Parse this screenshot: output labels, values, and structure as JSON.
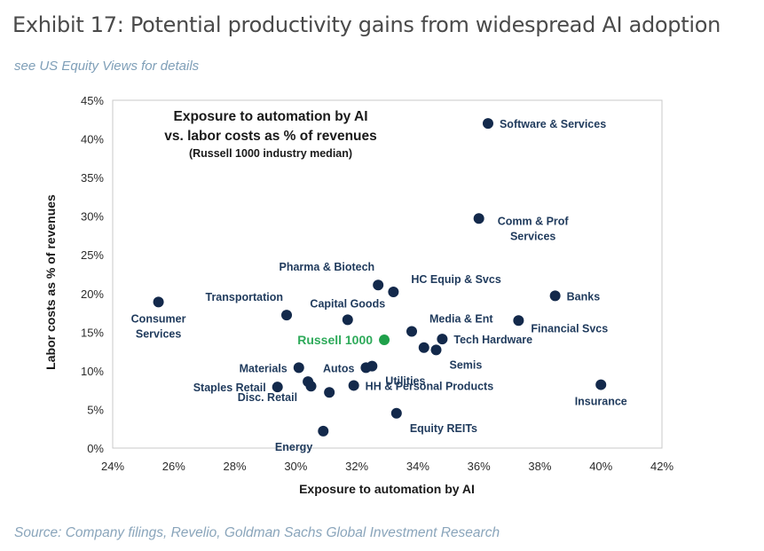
{
  "header": {
    "title": "Exhibit 17: Potential productivity gains from widespread AI adoption",
    "subtitle": "see US Equity Views for details"
  },
  "footer": {
    "source": "Source: Company filings, Revelio, Goldman Sachs Global Investment Research"
  },
  "colors": {
    "point": "#13294b",
    "highlight": "#1fa04a",
    "highlight_label": "#2eaa5a",
    "label": "#1f3a5c",
    "frame": "#c8c8c8"
  },
  "chart_data": {
    "type": "scatter",
    "title_lines": [
      "Exposure to automation by AI",
      "vs. labor costs as % of revenues"
    ],
    "subtitle": "(Russell 1000 industry median)",
    "xlabel": "Exposure to automation by AI",
    "ylabel": "Labor costs as % of revenues",
    "xlim": [
      24,
      42
    ],
    "ylim": [
      0,
      45
    ],
    "xticks": [
      24,
      26,
      28,
      30,
      32,
      34,
      36,
      38,
      40,
      42
    ],
    "yticks": [
      0,
      5,
      10,
      15,
      20,
      25,
      30,
      35,
      40,
      45
    ],
    "unit": "%",
    "grid": false,
    "points": [
      {
        "name": "Software & Services",
        "label": [
          "Software & Services"
        ],
        "x": 36.3,
        "y": 42.0,
        "label_side": "right"
      },
      {
        "name": "Comm & Prof Services",
        "label": [
          "Comm & Prof",
          "Services"
        ],
        "x": 36.0,
        "y": 29.7,
        "label_side": "right-below"
      },
      {
        "name": "Pharma & Biotech",
        "label": [
          "Pharma & Biotech"
        ],
        "x": 32.7,
        "y": 21.1,
        "label_side": "above-left"
      },
      {
        "name": "HC Equip & Svcs",
        "label": [
          "HC Equip & Svcs"
        ],
        "x": 33.2,
        "y": 20.2,
        "label_side": "right-above"
      },
      {
        "name": "Banks",
        "label": [
          "Banks"
        ],
        "x": 38.5,
        "y": 19.7,
        "label_side": "right"
      },
      {
        "name": "Consumer Services",
        "label": [
          "Consumer",
          "Services"
        ],
        "x": 25.5,
        "y": 18.9,
        "label_side": "below"
      },
      {
        "name": "Transportation",
        "label": [
          "Transportation"
        ],
        "x": 29.7,
        "y": 17.2,
        "label_side": "above-left"
      },
      {
        "name": "Capital Goods",
        "label": [
          "Capital Goods"
        ],
        "x": 31.7,
        "y": 16.6,
        "label_side": "above"
      },
      {
        "name": "Financial Svcs",
        "label": [
          "Financial  Svcs"
        ],
        "x": 37.3,
        "y": 16.5,
        "label_side": "right-below"
      },
      {
        "name": "Media & Ent",
        "label": [
          "Media & Ent"
        ],
        "x": 33.8,
        "y": 15.1,
        "label_side": "right-above"
      },
      {
        "name": "Russell 1000",
        "label": [
          "Russell 1000"
        ],
        "x": 32.9,
        "y": 14.0,
        "label_side": "left",
        "highlight": true
      },
      {
        "name": "Tech Hardware",
        "label": [
          "Tech Hardware"
        ],
        "x": 34.8,
        "y": 14.1,
        "label_side": "right"
      },
      {
        "name": "Semis",
        "label": [
          "Semis"
        ],
        "x": 34.2,
        "y": 13.0,
        "label_side": "none"
      },
      {
        "name": "Semis (2)",
        "label": [
          "Semis"
        ],
        "x": 34.6,
        "y": 12.7,
        "label_side": "below-right"
      },
      {
        "name": "Materials",
        "label": [
          "Materials"
        ],
        "x": 30.1,
        "y": 10.4,
        "label_side": "left"
      },
      {
        "name": "Autos",
        "label": [
          "Autos"
        ],
        "x": 32.3,
        "y": 10.4,
        "label_side": "left"
      },
      {
        "name": "Utilities",
        "label": [
          "Utilities"
        ],
        "x": 32.5,
        "y": 10.6,
        "label_side": "below-right"
      },
      {
        "name": "Disc. Retail",
        "label": [
          "Disc. Retail"
        ],
        "x": 30.4,
        "y": 8.6,
        "label_side": "below-left"
      },
      {
        "name": "Disc. Retail (2)",
        "label": [
          "Disc. Retail"
        ],
        "x": 30.5,
        "y": 8.0,
        "label_side": "none"
      },
      {
        "name": "Staples Retail",
        "label": [
          "Staples Retail"
        ],
        "x": 29.4,
        "y": 7.9,
        "label_side": "left"
      },
      {
        "name": "HH & Personal Products",
        "label": [
          "HH & Personal Products"
        ],
        "x": 31.1,
        "y": 7.2,
        "label_side": "none"
      },
      {
        "name": "HH & Personal Products (2)",
        "label": [
          "HH & Personal Products"
        ],
        "x": 31.9,
        "y": 8.1,
        "label_side": "right"
      },
      {
        "name": "Insurance",
        "label": [
          "Insurance"
        ],
        "x": 40.0,
        "y": 8.2,
        "label_side": "below"
      },
      {
        "name": "Equity REITs",
        "label": [
          "Equity  REITs"
        ],
        "x": 33.3,
        "y": 4.5,
        "label_side": "below-right"
      },
      {
        "name": "Energy",
        "label": [
          "Energy"
        ],
        "x": 30.9,
        "y": 2.2,
        "label_side": "below-left"
      }
    ]
  }
}
